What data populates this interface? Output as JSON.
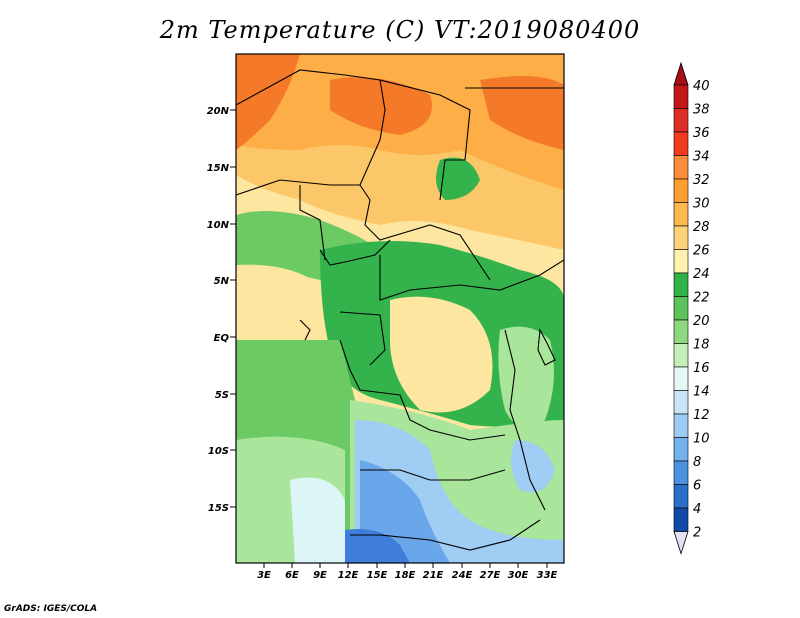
{
  "title": "2m Temperature (C) VT:2019080400",
  "credit": "GrADS: IGES/COLA",
  "lat_ticks": [
    "20N",
    "15N",
    "10N",
    "5N",
    "EQ",
    "5S",
    "10S",
    "15S"
  ],
  "lon_ticks": [
    "3E",
    "6E",
    "9E",
    "12E",
    "15E",
    "18E",
    "21E",
    "24E",
    "27E",
    "30E",
    "33E"
  ],
  "colorbar": {
    "labels": [
      "40",
      "38",
      "36",
      "34",
      "32",
      "30",
      "28",
      "26",
      "24",
      "22",
      "20",
      "18",
      "16",
      "14",
      "12",
      "10",
      "8",
      "6",
      "4",
      "2"
    ],
    "colors": [
      "#a50f15",
      "#c3161b",
      "#de2d26",
      "#f03b20",
      "#fd8d3c",
      "#fd9f2f",
      "#fdb84f",
      "#fdd37a",
      "#fff2ae",
      "#32b34a",
      "#5cc25a",
      "#8ed87f",
      "#c6efb7",
      "#e5f8f5",
      "#c8e4f5",
      "#9ecbf2",
      "#74b2ec",
      "#4c92e0",
      "#2c6fc9",
      "#1149a6",
      "#0c2a80",
      "#0a1a66"
    ],
    "arrow_low_color": "#e6e0f5"
  },
  "map_colors": {
    "very_hot": "#f47a2a",
    "hot": "#fdae46",
    "warm": "#fcc769",
    "mild": "#fde7a0",
    "green_dark": "#34b34c",
    "green_mid": "#6cca64",
    "green_light": "#a9e59b",
    "cyan": "#dcf6f7",
    "blue_light": "#9fcdf3",
    "blue_mid": "#6aa6ea",
    "blue_dark": "#3f7ddb"
  }
}
